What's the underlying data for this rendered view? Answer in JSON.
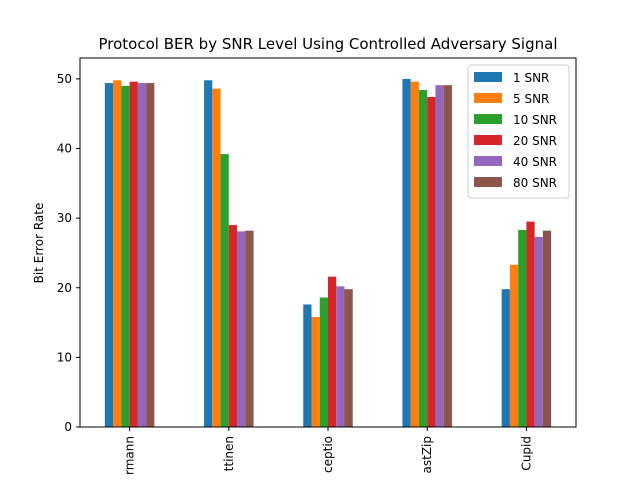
{
  "chart_data": {
    "type": "bar",
    "title": "Protocol BER by SNR Level Using Controlled Adversary Signal",
    "xlabel": "",
    "ylabel": "Bit Error Rate",
    "ylim": [
      0,
      53
    ],
    "yticks": [
      "0",
      "10",
      "20",
      "30",
      "40",
      "50"
    ],
    "categories": [
      "rmann",
      "ttinen",
      "ceptio",
      "astZip",
      "Cupid"
    ],
    "legend_position": "top-right",
    "grid": false,
    "series": [
      {
        "name": "1 SNR",
        "color": "#1f77b4",
        "values": [
          49.4,
          49.8,
          17.6,
          50.0,
          19.8
        ]
      },
      {
        "name": "5 SNR",
        "color": "#ff7f0e",
        "values": [
          49.8,
          48.6,
          15.8,
          49.6,
          23.3
        ]
      },
      {
        "name": "10 SNR",
        "color": "#2ca02c",
        "values": [
          49.0,
          39.2,
          18.6,
          48.4,
          28.3
        ]
      },
      {
        "name": "20 SNR",
        "color": "#d62728",
        "values": [
          49.6,
          29.0,
          21.6,
          47.4,
          29.5
        ]
      },
      {
        "name": "40 SNR",
        "color": "#9467bd",
        "values": [
          49.4,
          28.1,
          20.2,
          49.1,
          27.3
        ]
      },
      {
        "name": "80 SNR",
        "color": "#8c564b",
        "values": [
          49.4,
          28.2,
          19.8,
          49.1,
          28.2
        ]
      }
    ]
  }
}
